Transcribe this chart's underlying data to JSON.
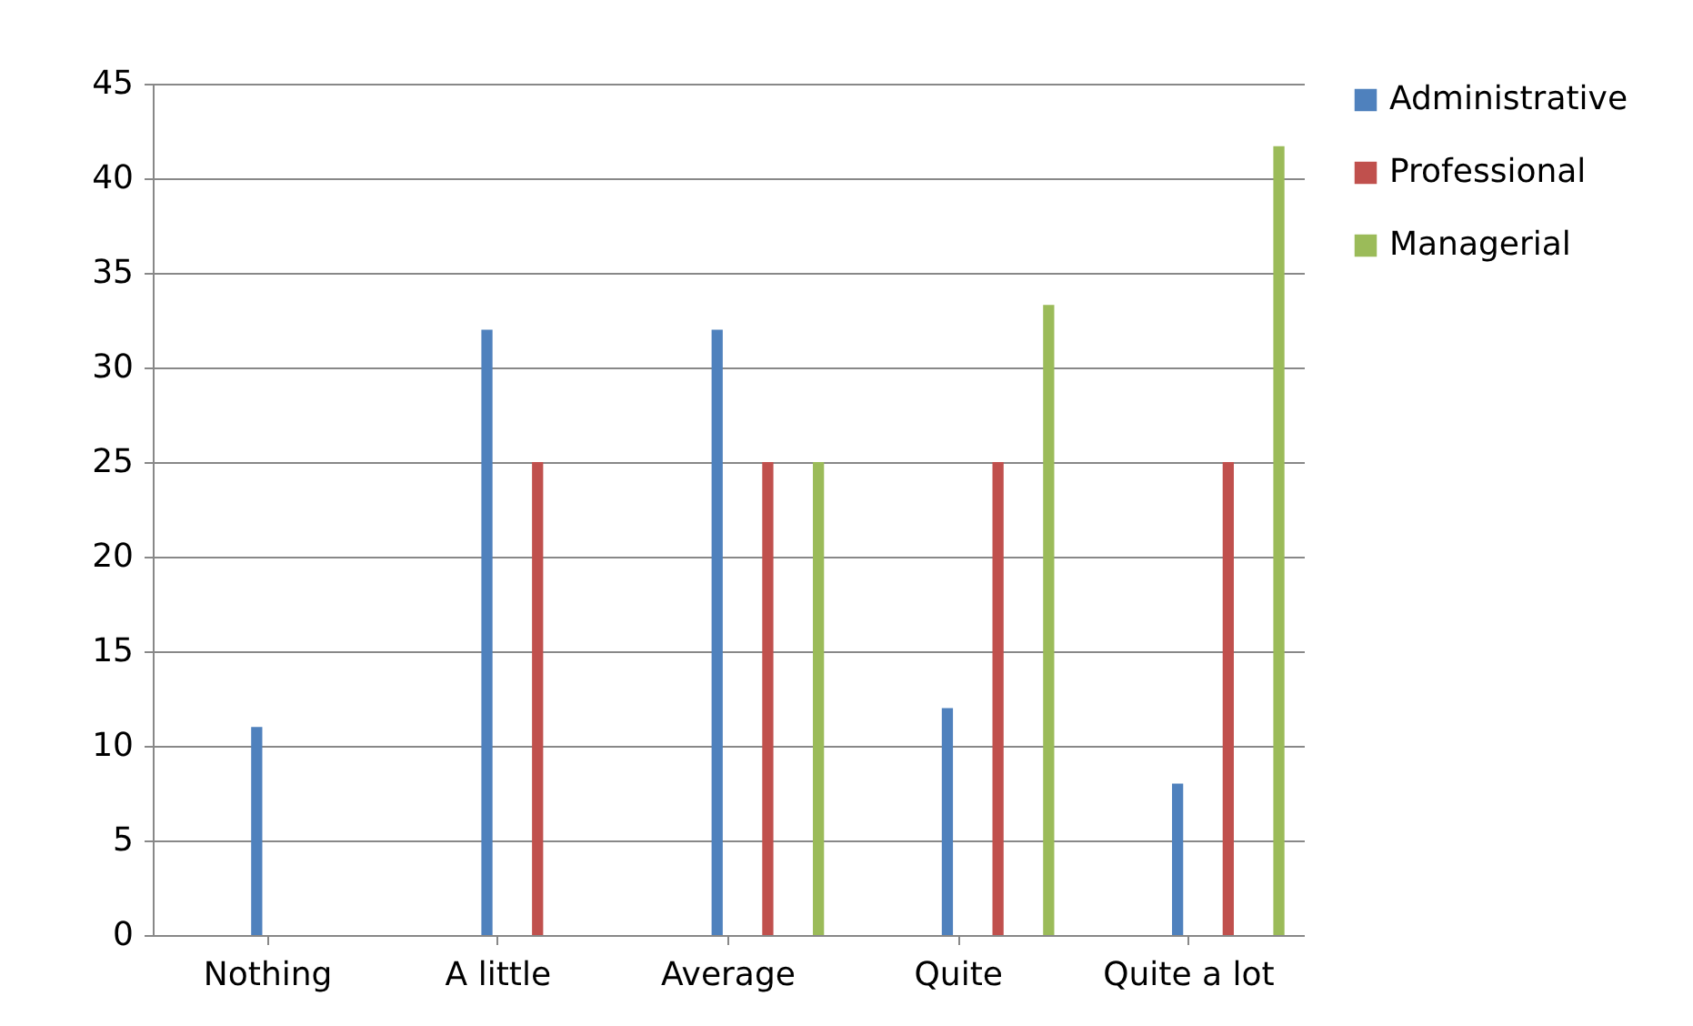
{
  "chart_data": {
    "type": "bar",
    "categories": [
      "Nothing",
      "A little",
      "Average",
      "Quite",
      "Quite a lot"
    ],
    "series": [
      {
        "name": "Administrative",
        "color": "#4f81bd",
        "values": [
          11,
          32,
          32,
          12,
          8
        ]
      },
      {
        "name": "Professional",
        "color": "#c0504d",
        "values": [
          0,
          25,
          25,
          25,
          25
        ]
      },
      {
        "name": "Managerial",
        "color": "#9bbb59",
        "values": [
          0,
          0,
          25,
          33.3,
          41.7
        ]
      }
    ],
    "ylim": [
      0,
      45
    ],
    "yticks": [
      0,
      5,
      10,
      15,
      20,
      25,
      30,
      35,
      40,
      45
    ],
    "grid": "y",
    "legend": "right"
  }
}
